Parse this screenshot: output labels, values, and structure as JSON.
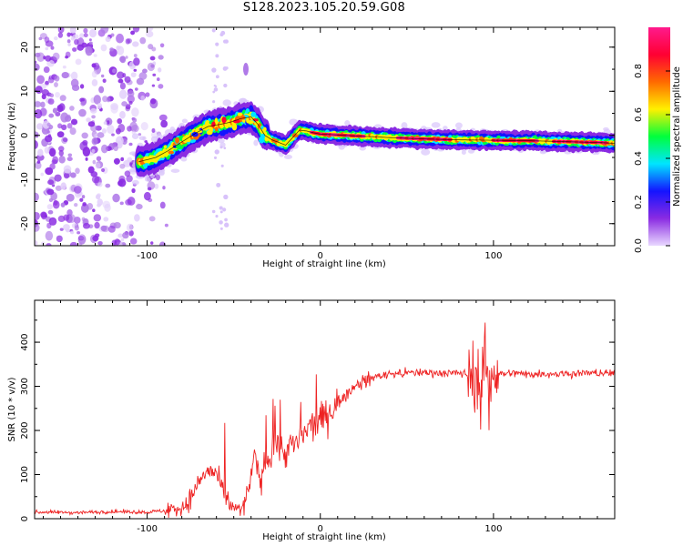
{
  "title": "S128.2023.105.20.59.G08",
  "chart_data": [
    {
      "type": "heatmap",
      "name": "spectrogram",
      "xlabel": "Height of straight line (km)",
      "ylabel": "Frequency (Hz)",
      "xlim": [
        -165,
        170
      ],
      "ylim": [
        -25,
        24.5
      ],
      "xticks": [
        "-100",
        "0",
        "100"
      ],
      "yticks": [
        "-20",
        "-10",
        "0",
        "10",
        "20"
      ],
      "xtick_values": [
        -100,
        0,
        100
      ],
      "ytick_values": [
        -20,
        -10,
        0,
        10,
        20
      ],
      "colorbar": {
        "label": "Normalized spectral amplitude",
        "range": [
          0.0,
          1.0
        ],
        "ticks": [
          "0.0",
          "0.2",
          "0.4",
          "0.6",
          "0.8"
        ],
        "tick_values": [
          0.0,
          0.2,
          0.4,
          0.6,
          0.8
        ],
        "colormap": [
          "#e9d8ff",
          "#8a2be2",
          "#1414ff",
          "#00e5ff",
          "#00ff3c",
          "#fff000",
          "#ff6a00",
          "#ff0033",
          "#ff1a8c"
        ]
      },
      "ridge": {
        "x": [
          -105,
          -95,
          -88,
          -80,
          -72,
          -65,
          -58,
          -52,
          -46,
          -40,
          -36,
          -32,
          -28,
          -24,
          -20,
          -16,
          -12,
          -8,
          -4,
          0,
          10,
          20,
          40,
          60,
          80,
          100,
          120,
          140,
          160,
          170
        ],
        "y": [
          -6,
          -5,
          -3.5,
          -1.5,
          0.5,
          2,
          2.5,
          3,
          3.8,
          4.2,
          2.5,
          0,
          -1,
          -1.6,
          -2.2,
          -0.5,
          1.2,
          1,
          0.6,
          0.3,
          0.1,
          -0.1,
          -0.5,
          -0.8,
          -1,
          -1.1,
          -1.2,
          -1.4,
          -1.6,
          -1.8
        ]
      }
    },
    {
      "type": "line",
      "name": "snr",
      "xlabel": "Height of straight line (km)",
      "ylabel": "SNR (10 * v/v)",
      "xlim": [
        -165,
        170
      ],
      "ylim": [
        0,
        495
      ],
      "xticks": [
        "-100",
        "0",
        "100"
      ],
      "yticks": [
        "0",
        "100",
        "200",
        "300",
        "400"
      ],
      "xtick_values": [
        -100,
        0,
        100
      ],
      "ytick_values": [
        0,
        100,
        200,
        300,
        400
      ],
      "color": "#ee2222",
      "series": [
        {
          "name": "SNR",
          "x": [
            -165,
            -140,
            -120,
            -100,
            -90,
            -80,
            -75,
            -70,
            -65,
            -60,
            -57,
            -54,
            -50,
            -47,
            -44,
            -41,
            -38,
            -35,
            -32,
            -29,
            -26,
            -23,
            -20,
            -17,
            -14,
            -11,
            -8,
            -5,
            -2,
            0,
            5,
            10,
            15,
            20,
            25,
            30,
            40,
            50,
            60,
            70,
            80,
            86,
            90,
            93,
            95,
            97,
            99,
            101,
            105,
            110,
            120,
            140,
            160,
            170
          ],
          "y": [
            15,
            14,
            16,
            15,
            18,
            25,
            45,
            85,
            110,
            100,
            70,
            45,
            25,
            18,
            28,
            80,
            140,
            90,
            120,
            150,
            175,
            160,
            150,
            165,
            170,
            180,
            200,
            210,
            215,
            225,
            240,
            265,
            280,
            300,
            310,
            320,
            328,
            330,
            332,
            330,
            330,
            328,
            322,
            320,
            322,
            326,
            335,
            330,
            328,
            330,
            328,
            329,
            330,
            330
          ]
        }
      ]
    }
  ]
}
